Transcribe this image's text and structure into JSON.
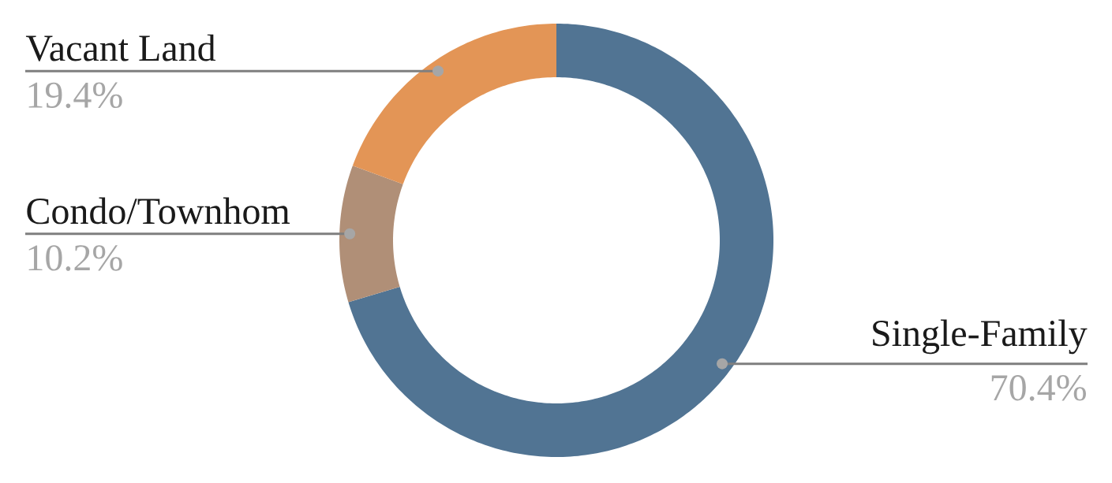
{
  "chart_data": {
    "type": "donut",
    "categories": [
      "Single-Family",
      "Condo/Townhom",
      "Vacant Land"
    ],
    "values": [
      70.4,
      10.2,
      19.4
    ],
    "colors": [
      "#517493",
      "#b08f77",
      "#e39556"
    ],
    "value_labels": [
      "70.4%",
      "10.2%",
      "19.4%"
    ]
  }
}
